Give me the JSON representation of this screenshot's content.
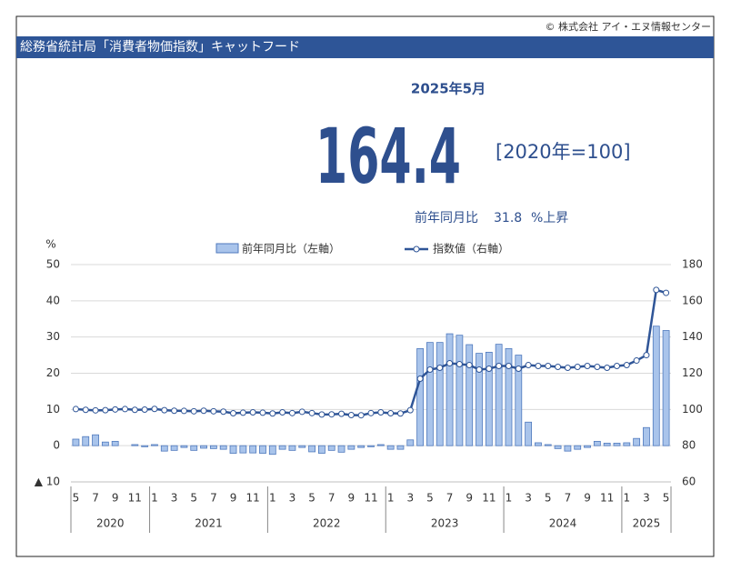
{
  "copyright": "© 株式会社 アイ・エヌ情報センター",
  "header": {
    "title": "総務省統計局「消費者物価指数」キャットフード"
  },
  "headline": {
    "period": "2025年5月",
    "value": "164.4",
    "base": "[2020年=100]",
    "yoy_label": "前年同月比",
    "yoy": "31.8",
    "yoy_unit": "%上昇"
  },
  "chart_data": {
    "type": "bar-line",
    "y_unit": "%",
    "groups": [
      {
        "label": "2020",
        "categories": [
          "5",
          null,
          "7",
          null,
          "9",
          null,
          "11",
          null
        ]
      },
      {
        "label": "2021",
        "categories": [
          "1",
          null,
          "3",
          null,
          "5",
          null,
          "7",
          null,
          "9",
          null,
          "11",
          null
        ]
      },
      {
        "label": "2022",
        "categories": [
          "1",
          null,
          "3",
          null,
          "5",
          null,
          "7",
          null,
          "9",
          null,
          "11",
          null
        ]
      },
      {
        "label": "2023",
        "categories": [
          "1",
          null,
          "3",
          null,
          "5",
          null,
          "7",
          null,
          "9",
          null,
          "11",
          null
        ]
      },
      {
        "label": "2024",
        "categories": [
          "1",
          null,
          "3",
          null,
          "5",
          null,
          "7",
          null,
          "9",
          null,
          "11",
          null
        ]
      },
      {
        "label": "2025",
        "categories": [
          "1",
          null,
          "3",
          null,
          "5"
        ]
      }
    ],
    "series": [
      {
        "name": "前年同月比（左軸）",
        "color": "#a9c4eb",
        "values": [
          1.8,
          2.5,
          3.0,
          1.0,
          1.2,
          0.0,
          0.3,
          -0.3,
          0.3,
          -1.5,
          -1.3,
          -0.5,
          -1.3,
          -0.7,
          -0.8,
          -1.0,
          -2.1,
          -2.0,
          -2.0,
          -2.1,
          -2.4,
          -1.0,
          -1.3,
          -0.5,
          -1.7,
          -2.1,
          -1.3,
          -1.8,
          -1.0,
          -0.5,
          -0.3,
          0.3,
          -1.0,
          -1.0,
          1.6,
          26.8,
          28.5,
          28.5,
          30.9,
          30.5,
          27.9,
          25.5,
          25.8,
          28.0,
          26.8,
          25.0,
          6.5,
          0.8,
          0.3,
          -0.8,
          -1.5,
          -1.0,
          -0.5,
          1.2,
          0.7,
          0.7,
          0.8,
          2.0,
          5.0,
          33.0,
          31.8
        ]
      },
      {
        "name": "指数値（右軸）",
        "color": "#2f5597",
        "axis": "y2",
        "values": [
          100.2,
          99.8,
          99.5,
          99.6,
          100.0,
          100.2,
          99.8,
          99.9,
          100.3,
          99.6,
          99.3,
          99.2,
          99.0,
          99.3,
          99.0,
          98.8,
          97.9,
          98.2,
          98.4,
          98.2,
          97.8,
          98.4,
          98.0,
          98.7,
          98.0,
          97.2,
          97.3,
          97.6,
          96.9,
          96.8,
          98.0,
          98.4,
          97.9,
          97.8,
          99.6,
          117.0,
          122.0,
          123.0,
          125.5,
          125.0,
          124.5,
          122.0,
          122.5,
          124.0,
          124.0,
          122.5,
          124.5,
          124.0,
          124.0,
          123.5,
          123.0,
          123.5,
          124.0,
          123.5,
          123.0,
          124.0,
          124.5,
          127.0,
          130.0,
          166.0,
          164.4
        ]
      }
    ],
    "ylim": [
      -10,
      50
    ],
    "yticks": [
      {
        "value": -10,
        "label": "▲ 10"
      },
      0,
      10,
      20,
      30,
      40,
      50
    ],
    "y2lim": [
      60,
      180
    ],
    "y2ticks": [
      60,
      80,
      100,
      120,
      140,
      160,
      180
    ],
    "grid": true
  }
}
